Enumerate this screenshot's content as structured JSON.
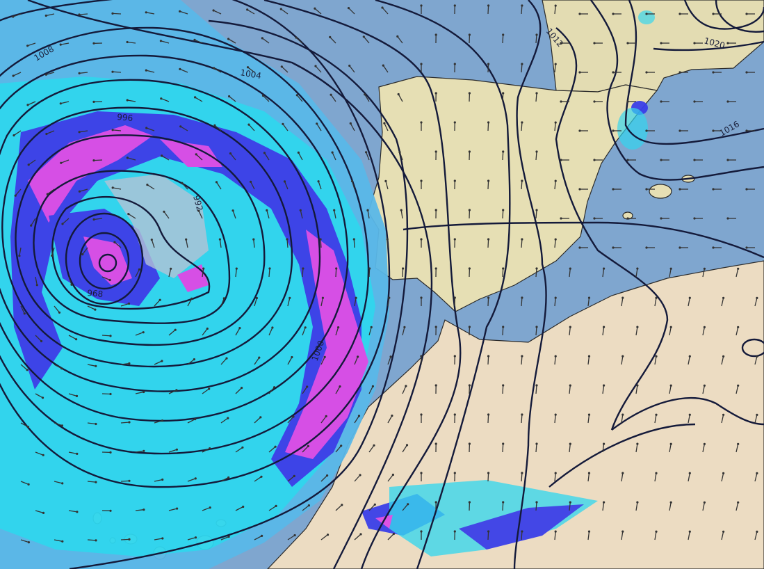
{
  "map": {
    "colors": {
      "sea": "#7fa6cf",
      "land_iberia": "#e6dfb4",
      "land_africa": "#ecdcc2",
      "land_france": "#e3dcb2",
      "precip_light": "#5ab8e8",
      "precip_cyan": "#2fd6ef",
      "precip_heavy": "#3a3fe8",
      "precip_extreme": "#dc4ae6",
      "isobar": "#141a3a",
      "wind_arrow": "#333333"
    },
    "isobar_labels": [
      "1008",
      "1004",
      "996",
      "992",
      "968",
      "1000",
      "1012",
      "1020",
      "1016"
    ]
  }
}
